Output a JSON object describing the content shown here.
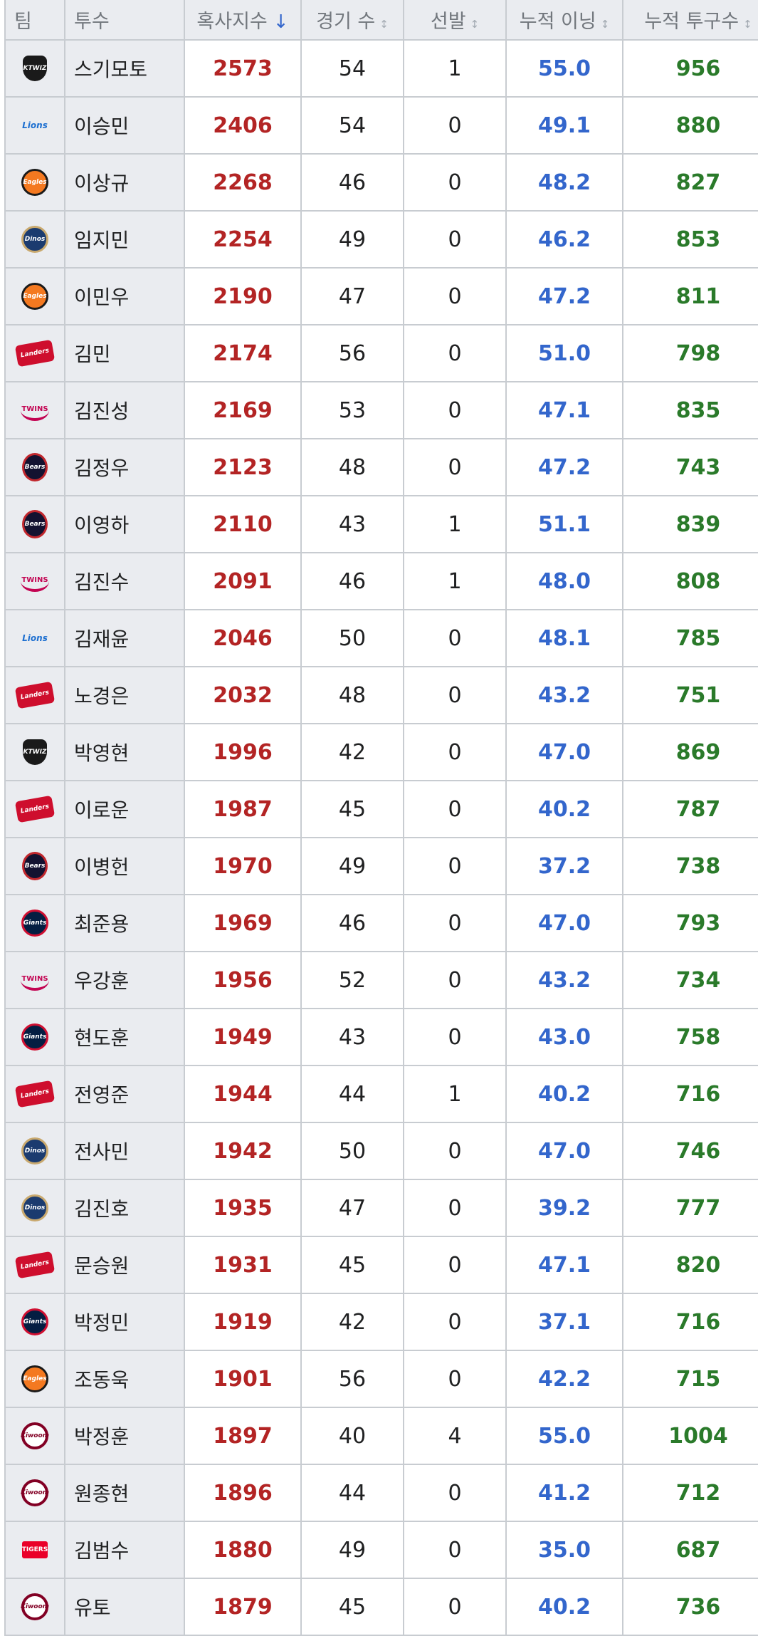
{
  "headers": {
    "team": "팀",
    "pitcher": "투수",
    "kpi": "혹사지수",
    "games": "경기 수",
    "starts": "선발",
    "innings": "누적 이닝",
    "pitches": "누적 투구수"
  },
  "sort_icons": {
    "active": "↓",
    "inactive": "↕"
  },
  "rows": [
    {
      "team_icon": "kt-wiz-logo-icon",
      "team_logo": "KTWIZ",
      "name": "스기모토",
      "kpi": "2573",
      "games": "54",
      "starts": "1",
      "innings": "55.0",
      "pitches": "956"
    },
    {
      "team_icon": "samsung-lions-logo-icon",
      "team_logo": "Lions",
      "name": "이승민",
      "kpi": "2406",
      "games": "54",
      "starts": "0",
      "innings": "49.1",
      "pitches": "880"
    },
    {
      "team_icon": "hanwha-eagles-logo-icon",
      "team_logo": "Eagles",
      "name": "이상규",
      "kpi": "2268",
      "games": "46",
      "starts": "0",
      "innings": "48.2",
      "pitches": "827"
    },
    {
      "team_icon": "nc-dinos-logo-icon",
      "team_logo": "Dinos",
      "name": "임지민",
      "kpi": "2254",
      "games": "49",
      "starts": "0",
      "innings": "46.2",
      "pitches": "853"
    },
    {
      "team_icon": "hanwha-eagles-logo-icon",
      "team_logo": "Eagles",
      "name": "이민우",
      "kpi": "2190",
      "games": "47",
      "starts": "0",
      "innings": "47.2",
      "pitches": "811"
    },
    {
      "team_icon": "ssg-landers-logo-icon",
      "team_logo": "Landers",
      "name": "김민",
      "kpi": "2174",
      "games": "56",
      "starts": "0",
      "innings": "51.0",
      "pitches": "798"
    },
    {
      "team_icon": "lg-twins-logo-icon",
      "team_logo": "TWINS",
      "name": "김진성",
      "kpi": "2169",
      "games": "53",
      "starts": "0",
      "innings": "47.1",
      "pitches": "835"
    },
    {
      "team_icon": "doosan-bears-logo-icon",
      "team_logo": "Bears",
      "name": "김정우",
      "kpi": "2123",
      "games": "48",
      "starts": "0",
      "innings": "47.2",
      "pitches": "743"
    },
    {
      "team_icon": "doosan-bears-logo-icon",
      "team_logo": "Bears",
      "name": "이영하",
      "kpi": "2110",
      "games": "43",
      "starts": "1",
      "innings": "51.1",
      "pitches": "839"
    },
    {
      "team_icon": "lg-twins-logo-icon",
      "team_logo": "TWINS",
      "name": "김진수",
      "kpi": "2091",
      "games": "46",
      "starts": "1",
      "innings": "48.0",
      "pitches": "808"
    },
    {
      "team_icon": "samsung-lions-logo-icon",
      "team_logo": "Lions",
      "name": "김재윤",
      "kpi": "2046",
      "games": "50",
      "starts": "0",
      "innings": "48.1",
      "pitches": "785"
    },
    {
      "team_icon": "ssg-landers-logo-icon",
      "team_logo": "Landers",
      "name": "노경은",
      "kpi": "2032",
      "games": "48",
      "starts": "0",
      "innings": "43.2",
      "pitches": "751"
    },
    {
      "team_icon": "kt-wiz-logo-icon",
      "team_logo": "KTWIZ",
      "name": "박영현",
      "kpi": "1996",
      "games": "42",
      "starts": "0",
      "innings": "47.0",
      "pitches": "869"
    },
    {
      "team_icon": "ssg-landers-logo-icon",
      "team_logo": "Landers",
      "name": "이로운",
      "kpi": "1987",
      "games": "45",
      "starts": "0",
      "innings": "40.2",
      "pitches": "787"
    },
    {
      "team_icon": "doosan-bears-logo-icon",
      "team_logo": "Bears",
      "name": "이병헌",
      "kpi": "1970",
      "games": "49",
      "starts": "0",
      "innings": "37.2",
      "pitches": "738"
    },
    {
      "team_icon": "lotte-giants-logo-icon",
      "team_logo": "Giants",
      "name": "최준용",
      "kpi": "1969",
      "games": "46",
      "starts": "0",
      "innings": "47.0",
      "pitches": "793"
    },
    {
      "team_icon": "lg-twins-logo-icon",
      "team_logo": "TWINS",
      "name": "우강훈",
      "kpi": "1956",
      "games": "52",
      "starts": "0",
      "innings": "43.2",
      "pitches": "734"
    },
    {
      "team_icon": "lotte-giants-logo-icon",
      "team_logo": "Giants",
      "name": "현도훈",
      "kpi": "1949",
      "games": "43",
      "starts": "0",
      "innings": "43.0",
      "pitches": "758"
    },
    {
      "team_icon": "ssg-landers-logo-icon",
      "team_logo": "Landers",
      "name": "전영준",
      "kpi": "1944",
      "games": "44",
      "starts": "1",
      "innings": "40.2",
      "pitches": "716"
    },
    {
      "team_icon": "nc-dinos-logo-icon",
      "team_logo": "Dinos",
      "name": "전사민",
      "kpi": "1942",
      "games": "50",
      "starts": "0",
      "innings": "47.0",
      "pitches": "746"
    },
    {
      "team_icon": "nc-dinos-logo-icon",
      "team_logo": "Dinos",
      "name": "김진호",
      "kpi": "1935",
      "games": "47",
      "starts": "0",
      "innings": "39.2",
      "pitches": "777"
    },
    {
      "team_icon": "ssg-landers-logo-icon",
      "team_logo": "Landers",
      "name": "문승원",
      "kpi": "1931",
      "games": "45",
      "starts": "0",
      "innings": "47.1",
      "pitches": "820"
    },
    {
      "team_icon": "lotte-giants-logo-icon",
      "team_logo": "Giants",
      "name": "박정민",
      "kpi": "1919",
      "games": "42",
      "starts": "0",
      "innings": "37.1",
      "pitches": "716"
    },
    {
      "team_icon": "hanwha-eagles-logo-icon",
      "team_logo": "Eagles",
      "name": "조동욱",
      "kpi": "1901",
      "games": "56",
      "starts": "0",
      "innings": "42.2",
      "pitches": "715"
    },
    {
      "team_icon": "kiwoom-heroes-logo-icon",
      "team_logo": "Kiwoom",
      "name": "박정훈",
      "kpi": "1897",
      "games": "40",
      "starts": "4",
      "innings": "55.0",
      "pitches": "1004"
    },
    {
      "team_icon": "kiwoom-heroes-logo-icon",
      "team_logo": "Kiwoom",
      "name": "원종현",
      "kpi": "1896",
      "games": "44",
      "starts": "0",
      "innings": "41.2",
      "pitches": "712"
    },
    {
      "team_icon": "kia-tigers-logo-icon",
      "team_logo": "TIGERS",
      "name": "김범수",
      "kpi": "1880",
      "games": "49",
      "starts": "0",
      "innings": "35.0",
      "pitches": "687"
    },
    {
      "team_icon": "kiwoom-heroes-logo-icon",
      "team_logo": "Kiwoom",
      "name": "유토",
      "kpi": "1879",
      "games": "45",
      "starts": "0",
      "innings": "40.2",
      "pitches": "736"
    }
  ]
}
